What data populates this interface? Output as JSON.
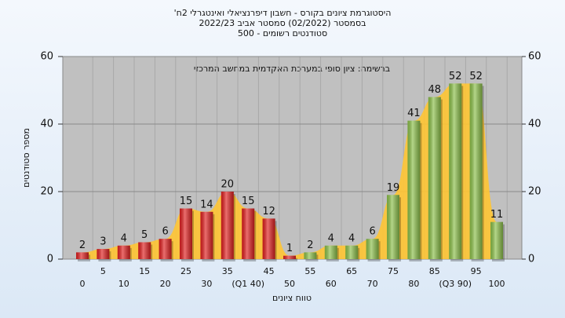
{
  "chart_data": {
    "type": "bar",
    "title": "היסטוגרמת ציונים בקורס - חשבון דיפרנציאלי ואינטגרלי 2ח'",
    "subtitle": "בסמסטר (02/2022) סמסטר אביב 2022/23",
    "subtitle2": "סטודנטים רשומים - 500",
    "annotation": "ברשימה: ציון סופי במערכת האקדמית במחשב המרכזי",
    "x_label": "טווח ציונים",
    "y_label": "מספר סטודנטים",
    "categories": [
      "0",
      "5",
      "10",
      "15",
      "20",
      "25",
      "30",
      "35",
      "(Q1 40)",
      "45",
      "50",
      "55",
      "60",
      "65",
      "70",
      "75",
      "80",
      "85",
      "(Q3 90)",
      "95",
      "100"
    ],
    "values": [
      2,
      3,
      4,
      5,
      6,
      15,
      14,
      20,
      15,
      12,
      1,
      2,
      4,
      4,
      6,
      19,
      41,
      48,
      52,
      52,
      11
    ],
    "colors": [
      "#e02020",
      "#e02020",
      "#e02020",
      "#e02020",
      "#e02020",
      "#e02020",
      "#e02020",
      "#e02020",
      "#e02020",
      "#e02020",
      "#e02020",
      "#8cc04a",
      "#8cc04a",
      "#8cc04a",
      "#8cc04a",
      "#8cc04a",
      "#8cc04a",
      "#8cc04a",
      "#8cc04a",
      "#8cc04a",
      "#8cc04a"
    ],
    "area_color": "#ffc533",
    "ylim": [
      0,
      60
    ],
    "yticks": [
      0,
      20,
      40,
      60
    ],
    "y2lim": [
      0,
      60
    ],
    "y2ticks": [
      0,
      20,
      40,
      60
    ],
    "grid": true
  }
}
